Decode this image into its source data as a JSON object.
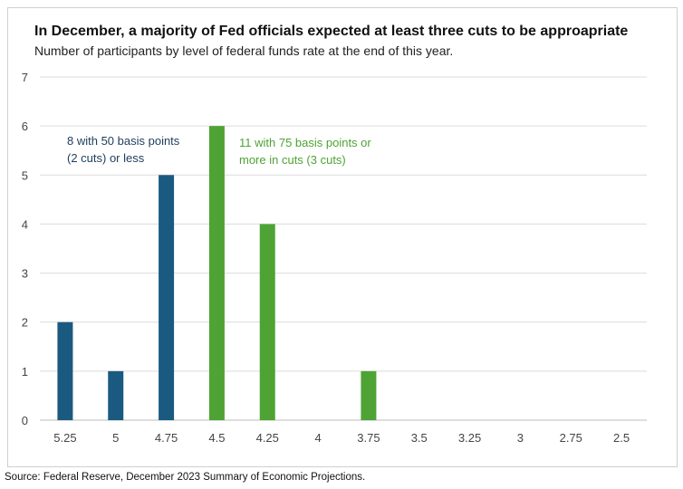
{
  "chart_data": {
    "type": "bar",
    "title": "In December, a majority of Fed officials expected at least three cuts to be approapriate",
    "subtitle": "Number of participants by level of federal funds rate at the end of this year.",
    "categories": [
      "5.25",
      "5",
      "4.75",
      "4.5",
      "4.25",
      "4",
      "3.75",
      "3.5",
      "3.25",
      "3",
      "2.75",
      "2.5"
    ],
    "values": [
      2,
      1,
      5,
      6,
      4,
      0,
      1,
      0,
      0,
      0,
      0,
      0
    ],
    "bar_colors": [
      "#1a5a80",
      "#1a5a80",
      "#1a5a80",
      "#4ea334",
      "#4ea334",
      "#4ea334",
      "#4ea334",
      "#4ea334",
      "#4ea334",
      "#4ea334",
      "#4ea334",
      "#4ea334"
    ],
    "ylim": [
      0,
      7
    ],
    "yticks": [
      0,
      1,
      2,
      3,
      4,
      5,
      6,
      7
    ],
    "grid": true,
    "xlabel": "",
    "ylabel": "",
    "annotations": [
      {
        "lines": [
          "8 with 50 basis points",
          "(2 cuts) or less"
        ],
        "color": "#1d3d5c"
      },
      {
        "lines": [
          "11 with 75 basis points or",
          "more in cuts (3 cuts)"
        ],
        "color": "#4ea334"
      }
    ]
  },
  "source": "Source: Federal Reserve, December 2023 Summary of Economic Projections."
}
